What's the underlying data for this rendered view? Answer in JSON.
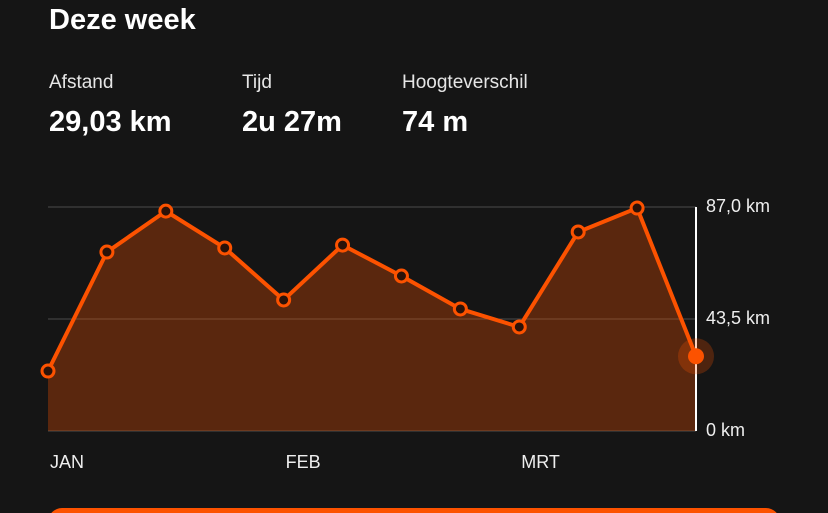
{
  "header": {
    "title": "Deze week"
  },
  "stats": [
    {
      "label": "Afstand",
      "value": "29,03 km"
    },
    {
      "label": "Tijd",
      "value": "2u 27m"
    },
    {
      "label": "Hoogteverschil",
      "value": "74 m"
    }
  ],
  "chart_data": {
    "type": "area",
    "categories": [
      "JAN",
      null,
      null,
      null,
      "FEB",
      null,
      null,
      null,
      "MRT",
      null,
      null,
      null
    ],
    "values": [
      23.3,
      69.5,
      85.4,
      71.1,
      50.9,
      72.2,
      60.2,
      47.4,
      40.4,
      77.3,
      86.6,
      29.03
    ],
    "color": "#fc5200",
    "ylim": [
      0,
      87
    ],
    "yticks": [
      {
        "value": 0,
        "label": "0 km"
      },
      {
        "value": 43.5,
        "label": "43,5 km"
      },
      {
        "value": 87,
        "label": "87,0 km"
      }
    ],
    "grid": true
  }
}
